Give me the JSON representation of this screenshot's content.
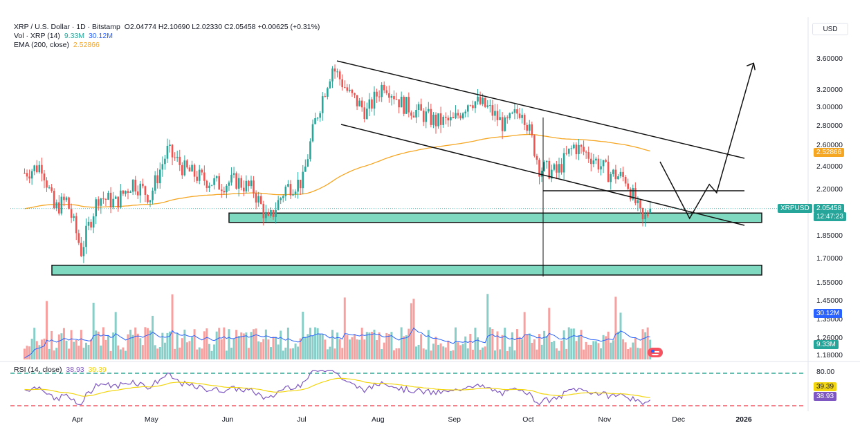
{
  "header": {
    "symbol": "XRP / U.S. Dollar · 1D · Bitstamp",
    "ohlc": "O2.04774  H2.10690  L2.02330  C2.05458  +0.00625 (+0.31%)",
    "vol_label": "Vol · XRP (14)",
    "vol_value": "9.33M",
    "vol_ma": "30.12M",
    "ema_label": "EMA (200, close)",
    "ema_value": "2.52866",
    "rsi_label": "RSI (14, close)",
    "rsi_value": "38.93",
    "rsi_ma": "39.39"
  },
  "currency": "USD",
  "tags": {
    "symbol_tag": "XRPUSD",
    "price_tag": "2.05458",
    "countdown": "12:47:23",
    "ema_tag": "2.52866",
    "vol_ma_tag": "30.12M",
    "vol_tag": "9.33M",
    "rsi_ma_tag": "39.39",
    "rsi_tag": "38.93"
  },
  "colors": {
    "up": "#26a69a",
    "down": "#ef5350",
    "ema": "#f5a623",
    "zone": "#7fd8c0",
    "rsi": "#7e57c2",
    "rsi_ma": "#f2d50f",
    "vol_ma": "#2962ff",
    "band_upper": "#089981",
    "band_lower": "#f23645"
  },
  "chart_data": [
    {
      "type": "candlestick",
      "title": "XRP / U.S. Dollar · 1D · Bitstamp",
      "y_scale": "log",
      "yticks": [
        "3.60000",
        "3.20000",
        "3.00000",
        "2.80000",
        "2.60000",
        "2.40000",
        "2.20000",
        "1.85000",
        "1.70000",
        "1.55000",
        "1.45000",
        "1.35000",
        "1.26000",
        "1.18000"
      ],
      "ytick_values": [
        3.6,
        3.2,
        3.0,
        2.8,
        2.6,
        2.4,
        2.2,
        1.85,
        1.7,
        1.55,
        1.45,
        1.35,
        1.26,
        1.18
      ],
      "xticks": [
        "Apr",
        "May",
        "Jun",
        "Jul",
        "Aug",
        "Sep",
        "Oct",
        "Nov",
        "Dec",
        "2026"
      ],
      "last_price": 2.05458,
      "ema200_last": 2.52866,
      "candles_approx_close": [
        [
          "2025-03-15",
          2.35
        ],
        [
          "2025-03-22",
          2.42
        ],
        [
          "2025-03-27",
          2.05
        ],
        [
          "2025-04-01",
          2.12
        ],
        [
          "2025-04-07",
          1.75
        ],
        [
          "2025-04-14",
          2.15
        ],
        [
          "2025-04-21",
          2.1
        ],
        [
          "2025-04-28",
          2.27
        ],
        [
          "2025-05-05",
          2.15
        ],
        [
          "2025-05-12",
          2.55
        ],
        [
          "2025-05-19",
          2.38
        ],
        [
          "2025-05-26",
          2.3
        ],
        [
          "2025-06-02",
          2.25
        ],
        [
          "2025-06-09",
          2.28
        ],
        [
          "2025-06-16",
          2.2
        ],
        [
          "2025-06-22",
          1.95
        ],
        [
          "2025-06-29",
          2.22
        ],
        [
          "2025-07-06",
          2.28
        ],
        [
          "2025-07-11",
          2.85
        ],
        [
          "2025-07-18",
          3.5
        ],
        [
          "2025-07-25",
          3.15
        ],
        [
          "2025-08-01",
          2.95
        ],
        [
          "2025-08-08",
          3.3
        ],
        [
          "2025-08-15",
          3.05
        ],
        [
          "2025-08-22",
          2.95
        ],
        [
          "2025-08-29",
          2.85
        ],
        [
          "2025-09-05",
          2.85
        ],
        [
          "2025-09-12",
          3.1
        ],
        [
          "2025-09-19",
          3.0
        ],
        [
          "2025-09-26",
          2.8
        ],
        [
          "2025-10-03",
          3.0
        ],
        [
          "2025-10-10",
          2.4
        ],
        [
          "2025-10-17",
          2.35
        ],
        [
          "2025-10-24",
          2.6
        ],
        [
          "2025-10-31",
          2.5
        ],
        [
          "2025-11-07",
          2.35
        ],
        [
          "2025-11-14",
          2.3
        ],
        [
          "2025-11-21",
          1.95
        ],
        [
          "2025-11-24",
          2.05458
        ]
      ],
      "zones": [
        {
          "label": "support-zone-upper",
          "from_date": "2025-06-01",
          "to_date": "2026-01-10",
          "y_low": 1.95,
          "y_high": 2.02
        },
        {
          "label": "support-zone-lower",
          "from_date": "2025-03-08",
          "to_date": "2026-01-10",
          "y_low": 1.6,
          "y_high": 1.66
        }
      ],
      "lines": [
        {
          "label": "channel-top",
          "from": [
            "2025-07-18",
            3.58
          ],
          "to": [
            "2026-01-01",
            2.45
          ]
        },
        {
          "label": "channel-bottom",
          "from": [
            "2025-07-18",
            2.85
          ],
          "to": [
            "2026-01-01",
            2.0
          ]
        },
        {
          "label": "horizontal-resistance",
          "from": [
            "2025-10-10",
            2.18
          ],
          "to": [
            "2026-01-01",
            2.18
          ]
        },
        {
          "label": "projection-path",
          "points": [
            [
              "2025-11-28",
              2.45
            ],
            [
              "2025-12-10",
              1.98
            ],
            [
              "2025-12-18",
              2.25
            ],
            [
              "2025-12-21",
              2.18
            ],
            [
              "2026-01-05",
              3.55
            ]
          ]
        }
      ]
    },
    {
      "type": "bar",
      "title": "Vol · XRP (14)",
      "last_value": "9.33M",
      "ma_value": "30.12M"
    },
    {
      "type": "line",
      "title": "RSI (14, close)",
      "band_labels": [
        "80.00"
      ],
      "series": [
        {
          "name": "RSI",
          "last": 38.93
        },
        {
          "name": "RSI MA",
          "last": 39.39
        }
      ]
    }
  ]
}
